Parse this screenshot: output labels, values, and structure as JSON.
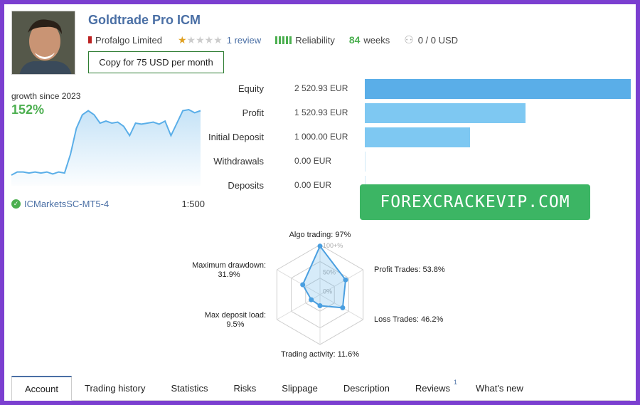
{
  "header": {
    "title": "Goldtrade Pro ICM",
    "provider": "Profalgo Limited",
    "rating_stars": 1,
    "reviews_label": "1 review",
    "reliability_label": "Reliability",
    "weeks_value": "84",
    "weeks_label": "weeks",
    "subscribers": "0 / 0 USD",
    "copy_button": "Copy for 75 USD per month"
  },
  "growth": {
    "label": "growth since 2023",
    "value": "152%"
  },
  "broker": {
    "name": "ICMarketsSC-MT5-4",
    "leverage": "1:500"
  },
  "balances": [
    {
      "label": "Equity",
      "value": "2 520.93 EUR",
      "amount": 2520.93,
      "color": "#5aaee8"
    },
    {
      "label": "Profit",
      "value": "1 520.93 EUR",
      "amount": 1520.93,
      "color": "#7ec8f2"
    },
    {
      "label": "Initial Deposit",
      "value": "1 000.00 EUR",
      "amount": 1000.0,
      "color": "#7ec8f2"
    },
    {
      "label": "Withdrawals",
      "value": "0.00 EUR",
      "amount": 0,
      "color": "#7ec8f2"
    },
    {
      "label": "Deposits",
      "value": "0.00 EUR",
      "amount": 0,
      "color": "#7ec8f2"
    }
  ],
  "watermark": "FOREXCRACKEVIP.COM",
  "radar": {
    "ring_labels": [
      "100+%",
      "50%",
      "0%"
    ],
    "axes": [
      {
        "label": "Algo trading: 97%",
        "value": 97
      },
      {
        "label": "Profit Trades: 53.8%",
        "value": 53.8
      },
      {
        "label": "Loss Trades: 46.2%",
        "value": 46.2
      },
      {
        "label": "Trading activity: 11.6%",
        "value": 11.6
      },
      {
        "label": "Max deposit load:",
        "label2": "9.5%",
        "value": 9.5
      },
      {
        "label": "Maximum drawdown:",
        "label2": "31.9%",
        "value": 31.9
      }
    ]
  },
  "growth_series": [
    0,
    3,
    3,
    2,
    3,
    2,
    3,
    1,
    3,
    2,
    20,
    45,
    58,
    62,
    58,
    50,
    52,
    50,
    51,
    47,
    38,
    50,
    49,
    50,
    51,
    49,
    52,
    38,
    50,
    62,
    63,
    60,
    62
  ],
  "tabs": [
    {
      "label": "Account",
      "active": true
    },
    {
      "label": "Trading history"
    },
    {
      "label": "Statistics"
    },
    {
      "label": "Risks"
    },
    {
      "label": "Slippage"
    },
    {
      "label": "Description"
    },
    {
      "label": "Reviews",
      "badge": "1"
    },
    {
      "label": "What's new"
    }
  ]
}
